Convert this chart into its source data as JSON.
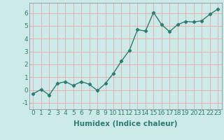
{
  "xlabel": "Humidex (Indice chaleur)",
  "x": [
    0,
    1,
    2,
    3,
    4,
    5,
    6,
    7,
    8,
    9,
    10,
    11,
    12,
    13,
    14,
    15,
    16,
    17,
    18,
    19,
    20,
    21,
    22,
    23
  ],
  "y": [
    -0.3,
    0.05,
    -0.4,
    0.5,
    0.65,
    0.35,
    0.65,
    0.45,
    -0.05,
    0.5,
    1.3,
    2.25,
    3.1,
    4.7,
    4.6,
    6.05,
    5.1,
    4.55,
    5.1,
    5.35,
    5.3,
    5.4,
    5.9,
    6.3
  ],
  "line_color": "#2e7d6e",
  "marker": "D",
  "marker_size": 2.2,
  "bg_color": "#cceae8",
  "grid_color": "#e8b0b0",
  "ylim": [
    -1.5,
    6.8
  ],
  "xlim": [
    -0.5,
    23.5
  ],
  "yticks": [
    -1,
    0,
    1,
    2,
    3,
    4,
    5,
    6
  ],
  "xticks": [
    0,
    1,
    2,
    3,
    4,
    5,
    6,
    7,
    8,
    9,
    10,
    11,
    12,
    13,
    14,
    15,
    16,
    17,
    18,
    19,
    20,
    21,
    22,
    23
  ],
  "xlabel_fontsize": 7.5,
  "tick_fontsize": 6.5,
  "line_width": 1.0
}
